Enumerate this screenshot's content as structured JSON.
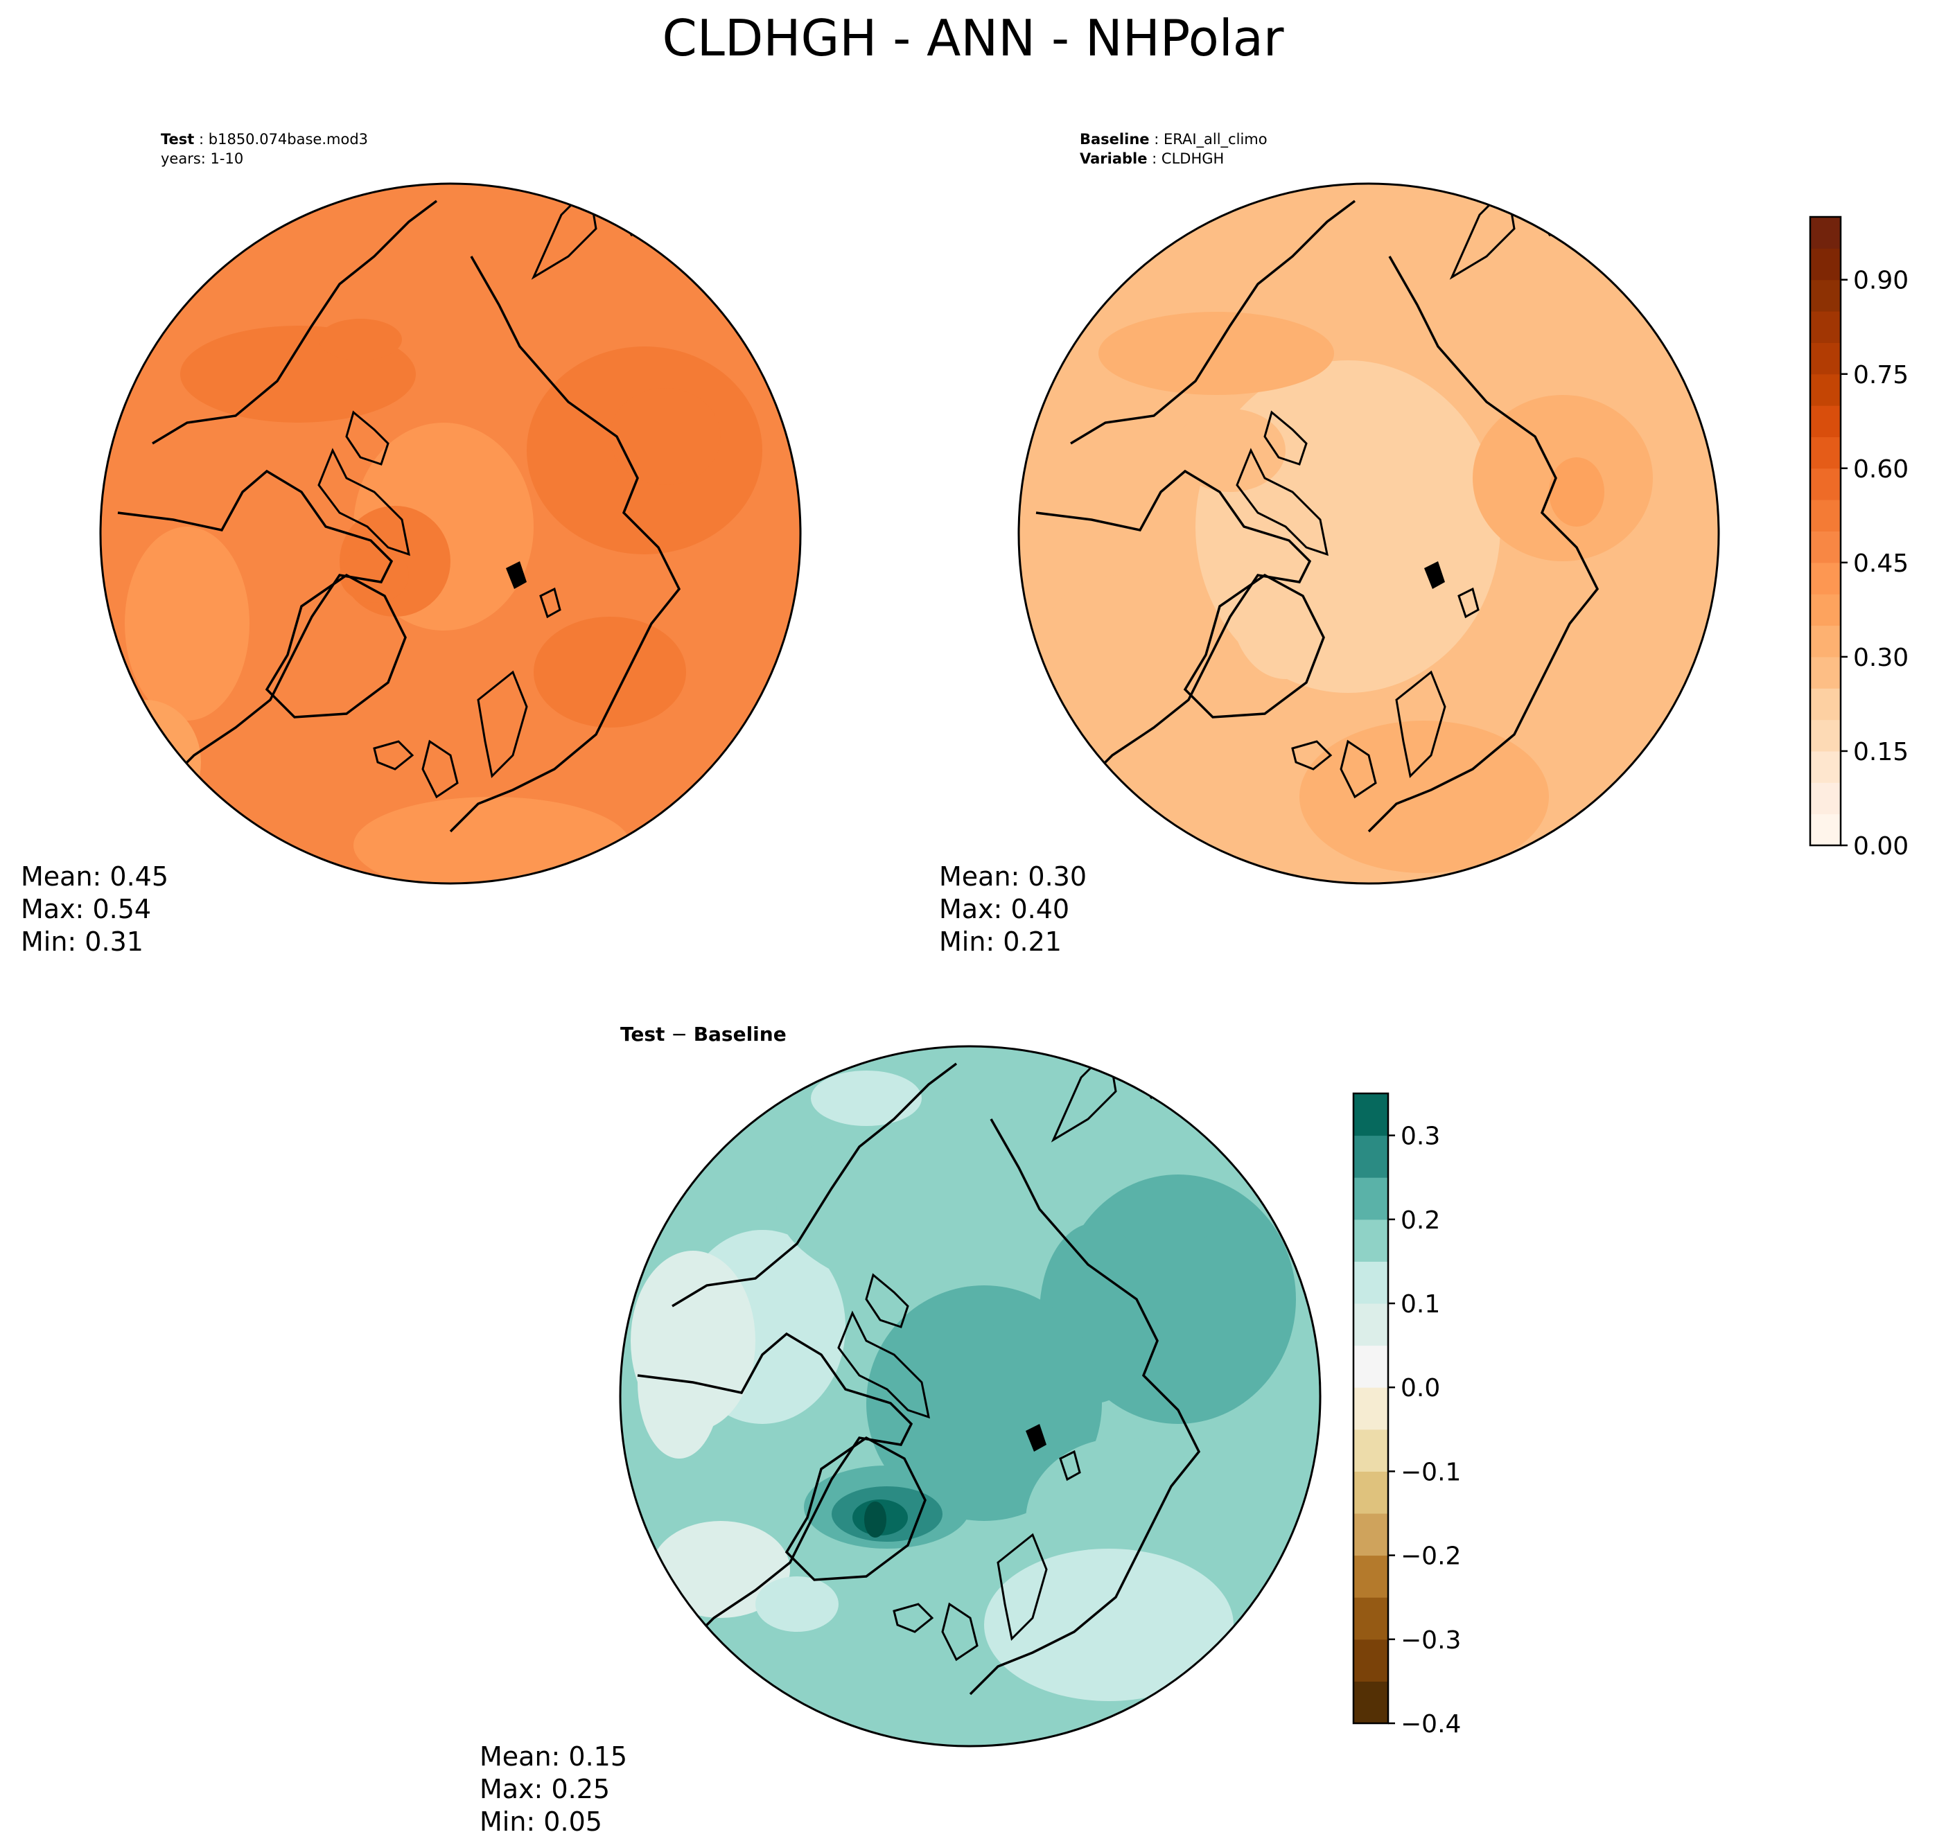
{
  "figure": {
    "title": "CLDHGH - ANN - NHPolar"
  },
  "panels": {
    "test": {
      "header_label": "Test",
      "header_value": "b1850.074base.mod3",
      "header_line2": "years: 1-10",
      "stats": {
        "mean": "Mean:  0.45",
        "max": "Max:  0.54",
        "min": "Min:  0.31"
      },
      "mean_value": 0.45
    },
    "baseline": {
      "header_label": "Baseline",
      "header_value": "ERAI_all_climo",
      "header_label2": "Variable",
      "header_value2": "CLDHGH",
      "stats": {
        "mean": "Mean:  0.30",
        "max": "Max:  0.40",
        "min": "Min:  0.21"
      },
      "mean_value": 0.3
    },
    "diff": {
      "header_a": "Test",
      "header_sep": " − ",
      "header_b": "Baseline",
      "stats": {
        "mean": "Mean:  0.15",
        "max": "Max:  0.25",
        "min": "Min:  0.05"
      },
      "mean_value": 0.15
    }
  },
  "colorbars": {
    "main": {
      "range": [
        0.0,
        1.0
      ],
      "step": 0.05,
      "ticks": [
        0.0,
        0.15,
        0.3,
        0.45,
        0.6,
        0.75,
        0.9
      ],
      "tick_labels": [
        "0.00",
        "0.15",
        "0.30",
        "0.45",
        "0.60",
        "0.75",
        "0.90"
      ],
      "colors": [
        "#fff5eb",
        "#feede0",
        "#fee6ce",
        "#fddab5",
        "#fdd0a2",
        "#fdbe85",
        "#fdb171",
        "#fda35e",
        "#fd9752",
        "#f88744",
        "#f47b35",
        "#ee6b27",
        "#e55c18",
        "#d94e0c",
        "#c44504",
        "#b23c03",
        "#a13603",
        "#8d3103",
        "#7f2704",
        "#72230c"
      ]
    },
    "diff": {
      "range": [
        -0.4,
        0.35
      ],
      "ticks": [
        -0.4,
        -0.3,
        -0.2,
        -0.1,
        0.0,
        0.1,
        0.2,
        0.3
      ],
      "tick_labels": [
        "−0.4",
        "−0.3",
        "−0.2",
        "−0.1",
        "0.0",
        "0.1",
        "0.2",
        "0.3"
      ],
      "bounds": [
        -0.4,
        -0.35,
        -0.3,
        -0.25,
        -0.2,
        -0.15,
        -0.1,
        -0.05,
        0.0,
        0.05,
        0.1,
        0.15,
        0.2,
        0.25,
        0.3,
        0.35
      ],
      "colors": [
        "#543005",
        "#7a4209",
        "#955a14",
        "#b47a2c",
        "#cfa35c",
        "#dfc27d",
        "#eddcaa",
        "#f6ecd2",
        "#f5f5f5",
        "#dceee9",
        "#c7eae5",
        "#8fd2c6",
        "#5ab2a8",
        "#2b8b83",
        "#06695d",
        "#014f43"
      ]
    }
  }
}
